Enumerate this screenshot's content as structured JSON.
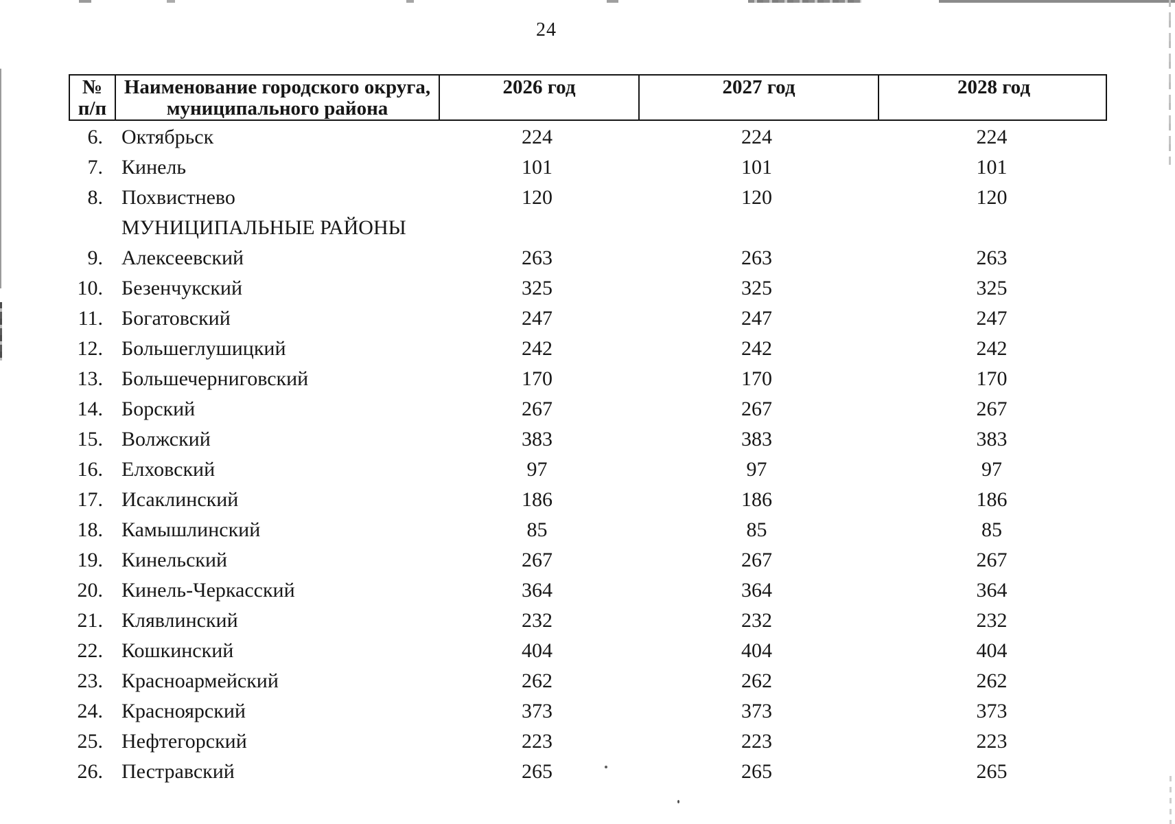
{
  "page_number": "24",
  "table": {
    "header": {
      "num_line1": "№",
      "num_line2": "п/п",
      "name_line1": "Наименование городского округа,",
      "name_line2": "муниципального района",
      "year_cols": [
        "2026 год",
        "2027 год",
        "2028 год"
      ]
    },
    "rows": [
      {
        "num": "6.",
        "name": "Октябрьск",
        "values": [
          "224",
          "224",
          "224"
        ]
      },
      {
        "num": "7.",
        "name": "Кинель",
        "values": [
          "101",
          "101",
          "101"
        ]
      },
      {
        "num": "8.",
        "name": "Похвистнево",
        "values": [
          "120",
          "120",
          "120"
        ]
      },
      {
        "section": "МУНИЦИПАЛЬНЫЕ РАЙОНЫ"
      },
      {
        "num": "9.",
        "name": "Алексеевский",
        "values": [
          "263",
          "263",
          "263"
        ]
      },
      {
        "num": "10.",
        "name": "Безенчукский",
        "values": [
          "325",
          "325",
          "325"
        ]
      },
      {
        "num": "11.",
        "name": "Богатовский",
        "values": [
          "247",
          "247",
          "247"
        ]
      },
      {
        "num": "12.",
        "name": "Большеглушицкий",
        "values": [
          "242",
          "242",
          "242"
        ]
      },
      {
        "num": "13.",
        "name": "Большечерниговский",
        "values": [
          "170",
          "170",
          "170"
        ]
      },
      {
        "num": "14.",
        "name": "Борский",
        "values": [
          "267",
          "267",
          "267"
        ]
      },
      {
        "num": "15.",
        "name": "Волжский",
        "values": [
          "383",
          "383",
          "383"
        ]
      },
      {
        "num": "16.",
        "name": "Елховский",
        "values": [
          "97",
          "97",
          "97"
        ]
      },
      {
        "num": "17.",
        "name": "Исаклинский",
        "values": [
          "186",
          "186",
          "186"
        ]
      },
      {
        "num": "18.",
        "name": "Камышлинский",
        "values": [
          "85",
          "85",
          "85"
        ]
      },
      {
        "num": "19.",
        "name": "Кинельский",
        "values": [
          "267",
          "267",
          "267"
        ]
      },
      {
        "num": "20.",
        "name": "Кинель-Черкасский",
        "values": [
          "364",
          "364",
          "364"
        ]
      },
      {
        "num": "21.",
        "name": "Клявлинский",
        "values": [
          "232",
          "232",
          "232"
        ]
      },
      {
        "num": "22.",
        "name": "Кошкинский",
        "values": [
          "404",
          "404",
          "404"
        ]
      },
      {
        "num": "23.",
        "name": "Красноармейский",
        "values": [
          "262",
          "262",
          "262"
        ]
      },
      {
        "num": "24.",
        "name": "Красноярский",
        "values": [
          "373",
          "373",
          "373"
        ]
      },
      {
        "num": "25.",
        "name": "Нефтегорский",
        "values": [
          "223",
          "223",
          "223"
        ]
      },
      {
        "num": "26.",
        "name": "Пестравский",
        "values": [
          "265",
          "265",
          "265"
        ]
      }
    ]
  }
}
